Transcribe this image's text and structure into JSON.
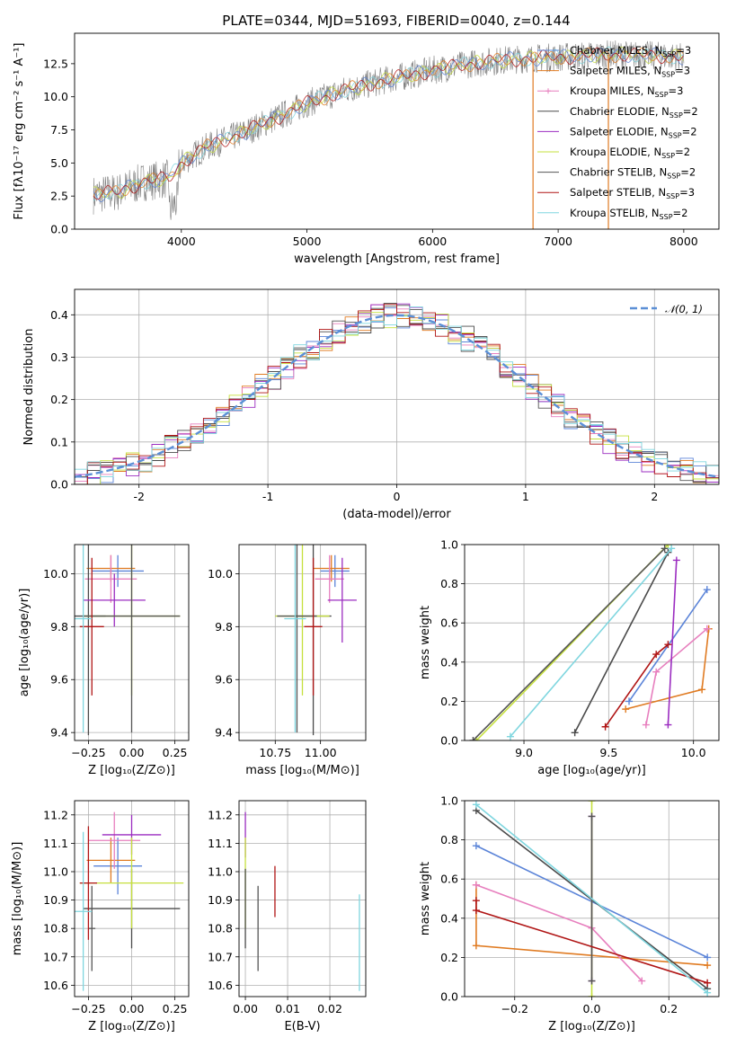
{
  "colors": {
    "chabrier_miles": "#5b84d8",
    "salpeter_miles": "#e07b22",
    "kroupa_miles": "#e77fbe",
    "chabrier_elodie": "#4a4a4a",
    "salpeter_elodie": "#9b2cc0",
    "kroupa_elodie": "#c6e03e",
    "chabrier_stelib": "#555555",
    "salpeter_stelib": "#b01515",
    "kroupa_stelib": "#7fd6df",
    "data": "#808080",
    "normal": "#5b8fd6"
  },
  "chart_data": [
    {
      "id": "spectrum",
      "type": "line",
      "title": "PLATE=0344, MJD=51693, FIBERID=0040, z=0.144",
      "xlabel": "wavelength [Angstrom, rest frame]",
      "ylabel": "Flux [fλ10⁻¹⁷ erg cm⁻² s⁻¹ A⁻¹]",
      "xlim": [
        3150,
        8280
      ],
      "ylim": [
        0,
        14.8
      ],
      "xticks": [
        4000,
        5000,
        6000,
        7000,
        8000
      ],
      "yticks": [
        0.0,
        2.5,
        5.0,
        7.5,
        10.0,
        12.5
      ],
      "continuum": [
        [
          3300,
          2.6
        ],
        [
          3500,
          2.8
        ],
        [
          3700,
          3.6
        ],
        [
          3900,
          3.8
        ],
        [
          4000,
          5.0
        ],
        [
          4200,
          6.2
        ],
        [
          4500,
          7.3
        ],
        [
          4800,
          8.6
        ],
        [
          5000,
          9.5
        ],
        [
          5300,
          10.5
        ],
        [
          5600,
          11.2
        ],
        [
          6000,
          12.0
        ],
        [
          6300,
          12.5
        ],
        [
          6600,
          12.8
        ],
        [
          7000,
          13.0
        ],
        [
          7400,
          13.2
        ],
        [
          7800,
          13.1
        ],
        [
          8000,
          13.0
        ]
      ],
      "spikes": [
        6800,
        7400
      ],
      "legend": [
        {
          "label": "Chabrier MILES, N",
          "sub": "SSP",
          "suffix": "=3",
          "key": "chabrier_miles"
        },
        {
          "label": "Salpeter MILES, N",
          "sub": "SSP",
          "suffix": "=3",
          "key": "salpeter_miles"
        },
        {
          "label": "Kroupa MILES, N",
          "sub": "SSP",
          "suffix": "=3",
          "key": "kroupa_miles"
        },
        {
          "label": "Chabrier ELODIE, N",
          "sub": "SSP",
          "suffix": "=2",
          "key": "chabrier_elodie"
        },
        {
          "label": "Salpeter ELODIE, N",
          "sub": "SSP",
          "suffix": "=2",
          "key": "salpeter_elodie"
        },
        {
          "label": "Kroupa ELODIE, N",
          "sub": "SSP",
          "suffix": "=2",
          "key": "kroupa_elodie"
        },
        {
          "label": "Chabrier STELIB, N",
          "sub": "SSP",
          "suffix": "=2",
          "key": "chabrier_stelib"
        },
        {
          "label": "Salpeter STELIB, N",
          "sub": "SSP",
          "suffix": "=3",
          "key": "salpeter_stelib"
        },
        {
          "label": "Kroupa STELIB, N",
          "sub": "SSP",
          "suffix": "=2",
          "key": "kroupa_stelib"
        }
      ]
    },
    {
      "id": "residuals",
      "type": "histogram",
      "xlabel": "(data-model)/error",
      "ylabel": "Normed distribution",
      "xlim": [
        -2.5,
        2.5
      ],
      "ylim": [
        0,
        0.46
      ],
      "xticks": [
        -2,
        -1,
        0,
        1,
        2
      ],
      "yticks": [
        0.0,
        0.1,
        0.2,
        0.3,
        0.4
      ],
      "grid": true,
      "bin_width": 0.1,
      "legend_label": "𝒩(0, 1)"
    },
    {
      "id": "age_vs_Z",
      "type": "scatter",
      "xlabel": "Z [log₁₀(Z/Z⊙)]",
      "ylabel": "age  [log₁₀(age/yr)]",
      "xlim": [
        -0.33,
        0.33
      ],
      "ylim": [
        9.37,
        10.11
      ],
      "xticks": [
        -0.25,
        0.0,
        0.25
      ],
      "xticklabels": [
        "−0.25",
        "0.00",
        "0.25"
      ],
      "yticks": [
        9.4,
        9.6,
        9.8,
        10.0
      ],
      "grid": true,
      "points": [
        {
          "key": "chabrier_miles",
          "x": -0.08,
          "y": 10.01,
          "xerr": 0.15,
          "yerr": 0.06
        },
        {
          "key": "salpeter_miles",
          "x": -0.12,
          "y": 10.02,
          "xerr": 0.14,
          "yerr": 0.05
        },
        {
          "key": "kroupa_miles",
          "x": -0.12,
          "y": 9.98,
          "xerr": 0.15,
          "yerr": 0.09
        },
        {
          "key": "chabrier_elodie",
          "x": -0.25,
          "y": 9.84,
          "xerr": 0.1,
          "yerr": 0.45
        },
        {
          "key": "salpeter_elodie",
          "x": -0.1,
          "y": 9.9,
          "xerr": 0.18,
          "yerr": 0.1
        },
        {
          "key": "kroupa_elodie",
          "x": 0.0,
          "y": 9.84,
          "xerr": 0.28,
          "yerr": 0.3
        },
        {
          "key": "chabrier_stelib",
          "x": 0.0,
          "y": 9.84,
          "xerr": 0.28,
          "yerr": 0.44
        },
        {
          "key": "salpeter_stelib",
          "x": -0.23,
          "y": 9.8,
          "xerr": 0.07,
          "yerr": 0.26
        },
        {
          "key": "kroupa_stelib",
          "x": -0.28,
          "y": 9.83,
          "xerr": 0.05,
          "yerr": 0.43
        }
      ]
    },
    {
      "id": "age_vs_mass",
      "type": "scatter",
      "xlabel": "mass [log₁₀(M/M⊙)]",
      "ylabel": "",
      "xlim": [
        10.55,
        11.25
      ],
      "ylim": [
        9.37,
        10.11
      ],
      "xticks": [
        10.75,
        11.0
      ],
      "xticklabels": [
        "10.75",
        "11.00"
      ],
      "yticks": [
        9.4,
        9.6,
        9.8,
        10.0
      ],
      "grid": true,
      "points": [
        {
          "key": "chabrier_miles",
          "x": 11.08,
          "y": 10.01,
          "xerr": 0.08,
          "yerr": 0.06
        },
        {
          "key": "salpeter_miles",
          "x": 11.06,
          "y": 10.02,
          "xerr": 0.1,
          "yerr": 0.05
        },
        {
          "key": "kroupa_miles",
          "x": 11.05,
          "y": 9.98,
          "xerr": 0.08,
          "yerr": 0.09
        },
        {
          "key": "chabrier_elodie",
          "x": 10.96,
          "y": 9.84,
          "xerr": 0.1,
          "yerr": 0.45
        },
        {
          "key": "salpeter_elodie",
          "x": 11.12,
          "y": 9.9,
          "xerr": 0.08,
          "yerr": 0.16
        },
        {
          "key": "kroupa_elodie",
          "x": 10.9,
          "y": 9.84,
          "xerr": 0.15,
          "yerr": 0.3
        },
        {
          "key": "chabrier_stelib",
          "x": 10.87,
          "y": 9.84,
          "xerr": 0.11,
          "yerr": 0.44
        },
        {
          "key": "salpeter_stelib",
          "x": 10.96,
          "y": 9.8,
          "xerr": 0.05,
          "yerr": 0.26
        },
        {
          "key": "kroupa_stelib",
          "x": 10.86,
          "y": 9.83,
          "xerr": 0.06,
          "yerr": 0.43
        }
      ]
    },
    {
      "id": "massweight_vs_age",
      "type": "line",
      "xlabel": "age  [log₁₀(age/yr)]",
      "ylabel": "mass weight",
      "xlim": [
        8.65,
        10.15
      ],
      "ylim": [
        0,
        1
      ],
      "xticks": [
        9.0,
        9.5,
        10.0
      ],
      "xticklabels": [
        "9.0",
        "9.5",
        "10.0"
      ],
      "yticks": [
        0.0,
        0.2,
        0.4,
        0.6,
        0.8,
        1.0
      ],
      "grid": true,
      "series": [
        {
          "key": "chabrier_miles",
          "points": [
            [
              9.62,
              0.2
            ],
            [
              10.08,
              0.77
            ]
          ]
        },
        {
          "key": "salpeter_miles",
          "points": [
            [
              9.6,
              0.16
            ],
            [
              10.05,
              0.26
            ],
            [
              10.09,
              0.57
            ]
          ]
        },
        {
          "key": "kroupa_miles",
          "points": [
            [
              9.72,
              0.08
            ],
            [
              9.78,
              0.35
            ],
            [
              10.08,
              0.57
            ]
          ]
        },
        {
          "key": "chabrier_elodie",
          "points": [
            [
              9.3,
              0.04
            ],
            [
              9.85,
              0.96
            ]
          ]
        },
        {
          "key": "salpeter_elodie",
          "points": [
            [
              9.85,
              0.08
            ],
            [
              9.9,
              0.92
            ]
          ]
        },
        {
          "key": "kroupa_elodie",
          "points": [
            [
              8.72,
              0.0
            ],
            [
              9.85,
              1.0
            ]
          ]
        },
        {
          "key": "chabrier_stelib",
          "points": [
            [
              8.7,
              0.0
            ],
            [
              9.83,
              0.98
            ]
          ]
        },
        {
          "key": "salpeter_stelib",
          "points": [
            [
              9.48,
              0.07
            ],
            [
              9.78,
              0.44
            ],
            [
              9.85,
              0.49
            ]
          ]
        },
        {
          "key": "kroupa_stelib",
          "points": [
            [
              8.92,
              0.02
            ],
            [
              9.87,
              0.98
            ]
          ]
        }
      ]
    },
    {
      "id": "mass_vs_Z",
      "type": "scatter",
      "xlabel": "Z [log₁₀(Z/Z⊙)]",
      "ylabel": "mass [log₁₀(M/M⊙)]",
      "xlim": [
        -0.33,
        0.33
      ],
      "ylim": [
        10.56,
        11.25
      ],
      "xticks": [
        -0.25,
        0.0,
        0.25
      ],
      "xticklabels": [
        "−0.25",
        "0.00",
        "0.25"
      ],
      "yticks": [
        10.6,
        10.7,
        10.8,
        10.9,
        11.0,
        11.1,
        11.2
      ],
      "grid": true,
      "points": [
        {
          "key": "chabrier_miles",
          "x": -0.08,
          "y": 11.02,
          "xerr": 0.14,
          "yerr": 0.1
        },
        {
          "key": "salpeter_miles",
          "x": -0.12,
          "y": 11.04,
          "xerr": 0.14,
          "yerr": 0.08
        },
        {
          "key": "kroupa_miles",
          "x": -0.1,
          "y": 11.11,
          "xerr": 0.15,
          "yerr": 0.1
        },
        {
          "key": "chabrier_elodie",
          "x": 0.0,
          "y": 10.87,
          "xerr": 0.28,
          "yerr": 0.14
        },
        {
          "key": "salpeter_elodie",
          "x": 0.0,
          "y": 11.13,
          "xerr": 0.17,
          "yerr": 0.07
        },
        {
          "key": "kroupa_elodie",
          "x": 0.0,
          "y": 10.96,
          "xerr": 0.3,
          "yerr": 0.16
        },
        {
          "key": "chabrier_stelib",
          "x": -0.23,
          "y": 10.8,
          "xerr": 0.02,
          "yerr": 0.15
        },
        {
          "key": "salpeter_stelib",
          "x": -0.25,
          "y": 10.96,
          "xerr": 0.05,
          "yerr": 0.2
        },
        {
          "key": "kroupa_stelib",
          "x": -0.28,
          "y": 10.86,
          "xerr": 0.05,
          "yerr": 0.28
        }
      ]
    },
    {
      "id": "mass_vs_ebv",
      "type": "scatter",
      "xlabel": "E(B-V)",
      "ylabel": "",
      "xlim": [
        -0.0015,
        0.0285
      ],
      "ylim": [
        10.56,
        11.25
      ],
      "xticks": [
        0.0,
        0.01,
        0.02
      ],
      "xticklabels": [
        "0.00",
        "0.01",
        "0.02"
      ],
      "yticks": [
        10.6,
        10.7,
        10.8,
        10.9,
        11.0,
        11.1,
        11.2
      ],
      "grid": true,
      "points": [
        {
          "key": "salpeter_elodie",
          "x": 0.0,
          "y": 11.13,
          "xerr": 0,
          "yerr": 0.08
        },
        {
          "key": "kroupa_elodie",
          "x": 0.0,
          "y": 10.96,
          "xerr": 0,
          "yerr": 0.16
        },
        {
          "key": "chabrier_elodie",
          "x": 0.0,
          "y": 10.87,
          "xerr": 0,
          "yerr": 0.14
        },
        {
          "key": "chabrier_stelib",
          "x": 0.003,
          "y": 10.8,
          "xerr": 0,
          "yerr": 0.15
        },
        {
          "key": "salpeter_stelib",
          "x": 0.007,
          "y": 10.93,
          "xerr": 0,
          "yerr": 0.09
        },
        {
          "key": "kroupa_stelib",
          "x": 0.027,
          "y": 10.75,
          "xerr": 0,
          "yerr": 0.17
        }
      ]
    },
    {
      "id": "massweight_vs_Z",
      "type": "line",
      "xlabel": "Z [log₁₀(Z/Z⊙)]",
      "ylabel": "mass weight",
      "xlim": [
        -0.33,
        0.33
      ],
      "ylim": [
        0,
        1
      ],
      "xticks": [
        -0.2,
        0.0,
        0.2
      ],
      "xticklabels": [
        "−0.2",
        "0.0",
        "0.2"
      ],
      "yticks": [
        0.0,
        0.2,
        0.4,
        0.6,
        0.8,
        1.0
      ],
      "grid": true,
      "series": [
        {
          "key": "chabrier_miles",
          "points": [
            [
              -0.3,
              0.77
            ],
            [
              0.3,
              0.2
            ]
          ]
        },
        {
          "key": "salpeter_miles",
          "points": [
            [
              -0.3,
              0.57
            ],
            [
              -0.3,
              0.26
            ],
            [
              0.3,
              0.16
            ]
          ]
        },
        {
          "key": "kroupa_miles",
          "points": [
            [
              -0.3,
              0.57
            ],
            [
              0.0,
              0.35
            ],
            [
              0.13,
              0.08
            ]
          ]
        },
        {
          "key": "chabrier_elodie",
          "points": [
            [
              -0.3,
              0.95
            ],
            [
              0.3,
              0.04
            ]
          ]
        },
        {
          "key": "salpeter_elodie",
          "points": [
            [
              0.0,
              0.08
            ],
            [
              0.0,
              0.92
            ]
          ]
        },
        {
          "key": "kroupa_elodie",
          "points": [
            [
              0.0,
              0.0
            ],
            [
              0.0,
              1.0
            ]
          ]
        },
        {
          "key": "chabrier_stelib",
          "points": [
            [
              0.0,
              0.08
            ],
            [
              0.0,
              0.92
            ]
          ]
        },
        {
          "key": "salpeter_stelib",
          "points": [
            [
              -0.3,
              0.49
            ],
            [
              -0.3,
              0.44
            ],
            [
              0.3,
              0.07
            ]
          ]
        },
        {
          "key": "kroupa_stelib",
          "points": [
            [
              -0.3,
              0.98
            ],
            [
              0.3,
              0.02
            ]
          ]
        }
      ]
    }
  ]
}
